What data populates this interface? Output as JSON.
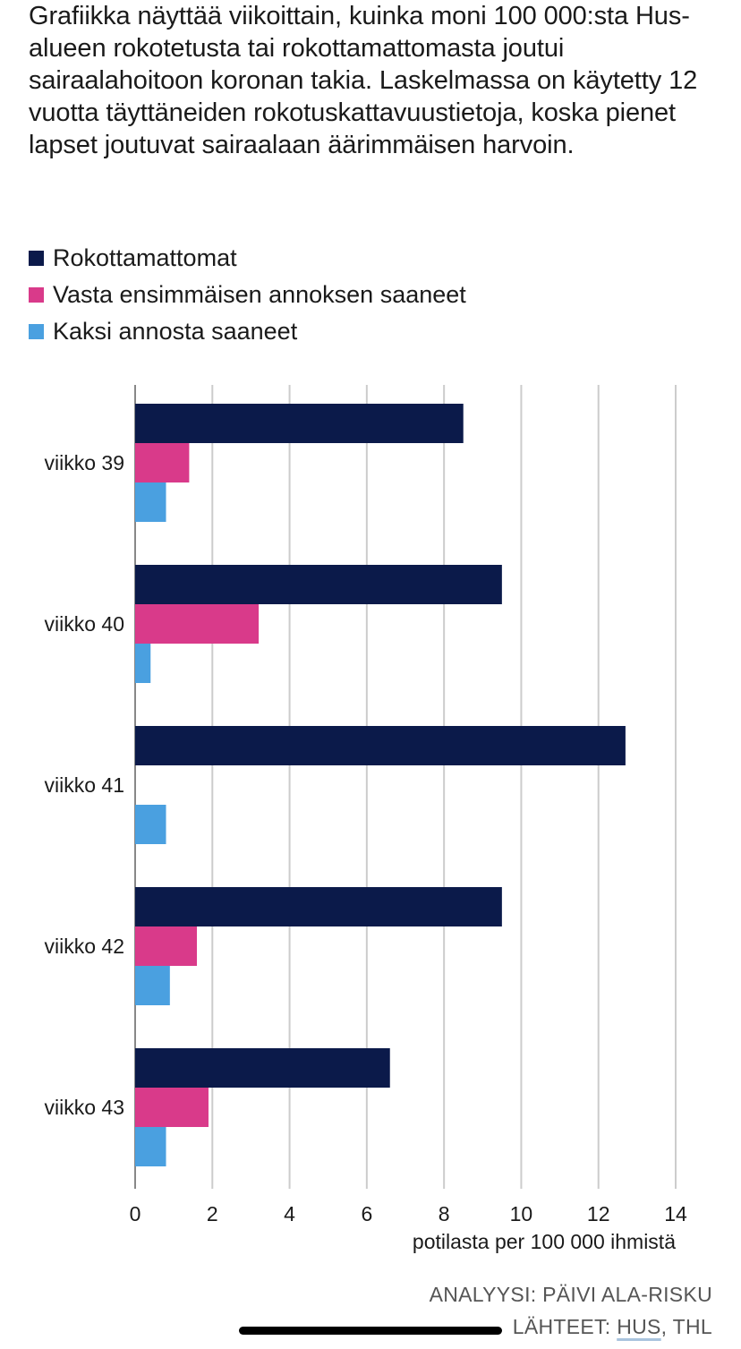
{
  "description": "Grafiikka näyttää viikoittain, kuinka moni 100 000:sta Hus-alueen rokotetusta tai rokottamattomasta joutui sairaalahoitoon koronan takia. Laskelmassa on käytetty 12 vuotta täyttäneiden rokotuskattavuustietoja, koska pienet lapset joutuvat sairaalaan äärimmäisen harvoin.",
  "legend": [
    {
      "label": "Rokottamattomat",
      "color": "#0b1a4a"
    },
    {
      "label": "Vasta ensimmäisen annoksen saaneet",
      "color": "#d93a8a"
    },
    {
      "label": "Kaksi annosta saaneet",
      "color": "#4aa0e0"
    }
  ],
  "chart_data": {
    "type": "bar",
    "orientation": "horizontal",
    "categories": [
      "viikko 39",
      "viikko 40",
      "viikko 41",
      "viikko 42",
      "viikko 43"
    ],
    "series": [
      {
        "name": "Rokottamattomat",
        "values": [
          8.5,
          9.5,
          12.7,
          9.5,
          6.6
        ],
        "color": "#0b1a4a"
      },
      {
        "name": "Vasta ensimmäisen annoksen saaneet",
        "values": [
          1.4,
          3.2,
          0,
          1.6,
          1.9
        ],
        "color": "#d93a8a"
      },
      {
        "name": "Kaksi annosta saaneet",
        "values": [
          0.8,
          0.4,
          0.8,
          0.9,
          0.8
        ],
        "color": "#4aa0e0"
      }
    ],
    "xlim": [
      0,
      14
    ],
    "xticks": [
      "0",
      "2",
      "4",
      "6",
      "8",
      "10",
      "12",
      "14"
    ],
    "xlabel": "potilasta per 100 000 ihmistä",
    "grid": true
  },
  "credits": {
    "analysis": "ANALYYSI: PÄIVI ALA-RISKU",
    "sources_prefix": "LÄHTEET: ",
    "sources_hus": "HUS",
    "sources_rest": ", THL"
  }
}
